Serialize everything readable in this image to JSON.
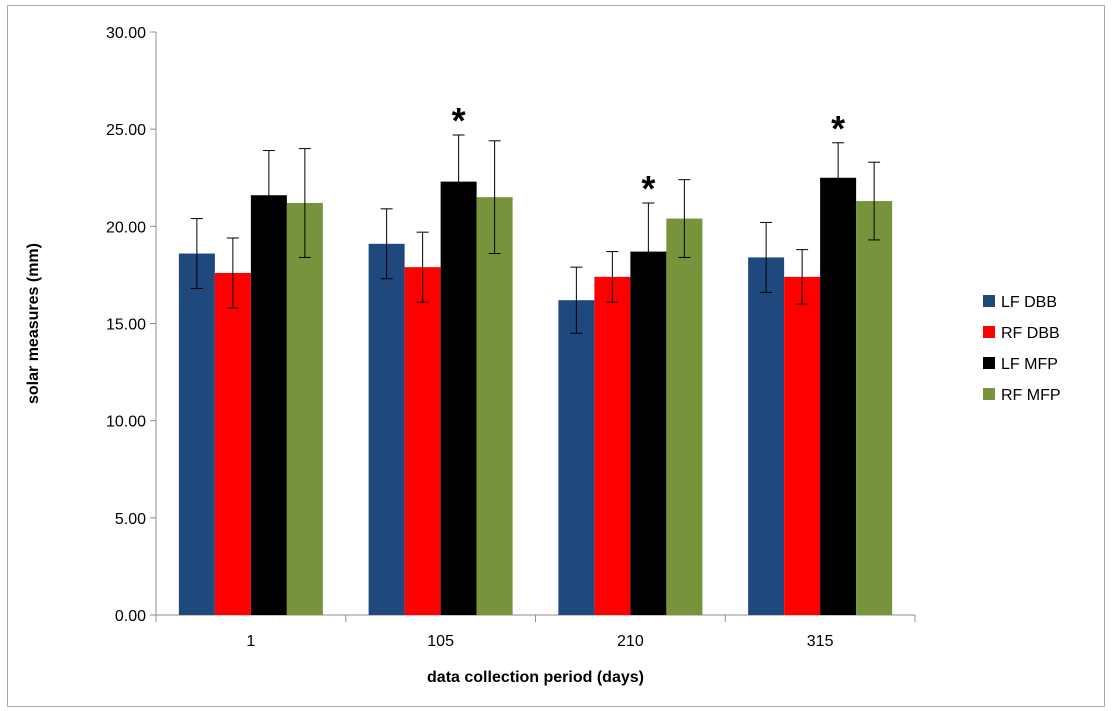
{
  "chart_data": {
    "type": "bar",
    "title": "",
    "xlabel": "data collection period (days)",
    "ylabel": "solar measures (mm)",
    "categories": [
      "1",
      "105",
      "210",
      "315"
    ],
    "ylim": [
      0,
      30
    ],
    "yticks": [
      "0.00",
      "5.00",
      "10.00",
      "15.00",
      "20.00",
      "25.00",
      "30.00"
    ],
    "grid": false,
    "legend_position": "right",
    "series": [
      {
        "name": "LF DBB",
        "color": "#1f497d",
        "values": [
          18.6,
          19.1,
          16.2,
          18.4
        ],
        "errors": [
          1.8,
          1.8,
          1.7,
          1.8
        ]
      },
      {
        "name": "RF DBB",
        "color": "#ff0000",
        "values": [
          17.6,
          17.9,
          17.4,
          17.4
        ],
        "errors": [
          1.8,
          1.8,
          1.3,
          1.4
        ]
      },
      {
        "name": "LF MFP",
        "color": "#000000",
        "values": [
          21.6,
          22.3,
          18.7,
          22.5
        ],
        "errors": [
          2.3,
          2.4,
          2.5,
          1.8
        ]
      },
      {
        "name": "RF MFP",
        "color": "#77933c",
        "values": [
          21.2,
          21.5,
          20.4,
          21.3
        ],
        "errors": [
          2.8,
          2.9,
          2.0,
          2.0
        ]
      }
    ],
    "annotations": [
      {
        "category": "105",
        "series": "LF MFP",
        "text": "*"
      },
      {
        "category": "210",
        "series": "LF MFP",
        "text": "*"
      },
      {
        "category": "315",
        "series": "LF MFP",
        "text": "*"
      }
    ]
  }
}
